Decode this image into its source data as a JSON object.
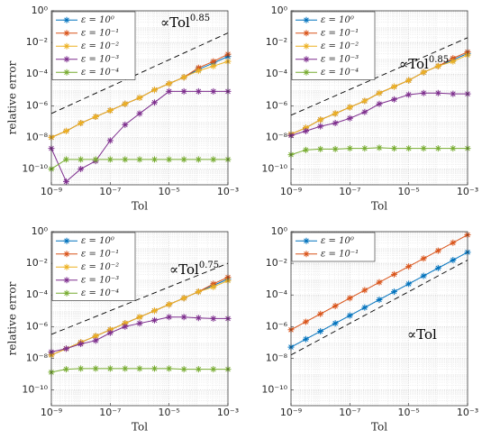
{
  "chart_data": [
    {
      "type": "line",
      "log": true,
      "grid": true,
      "legend": "upper left",
      "xlabel": "Tol",
      "ylabel": "relative error",
      "xlim": [
        1e-09,
        0.001
      ],
      "ylim": [
        1e-11,
        1
      ],
      "xticks": [
        {
          "value": 1e-09,
          "label": "10⁻⁹"
        },
        {
          "value": 1e-07,
          "label": "10⁻⁷"
        },
        {
          "value": 1e-05,
          "label": "10⁻⁵"
        },
        {
          "value": 0.001,
          "label": "10⁻³"
        }
      ],
      "yticks": [
        {
          "value": 1,
          "label": "10⁰"
        },
        {
          "value": 0.01,
          "label": "10⁻²"
        },
        {
          "value": 0.0001,
          "label": "10⁻⁴"
        },
        {
          "value": 1e-06,
          "label": "10⁻⁶"
        },
        {
          "value": 1e-08,
          "label": "10⁻⁸"
        },
        {
          "value": 1e-10,
          "label": "10⁻¹⁰"
        }
      ],
      "x": [
        1e-09,
        3.2e-09,
        1e-08,
        3.2e-08,
        1e-07,
        3.2e-07,
        1e-06,
        3.2e-06,
        1e-05,
        3.2e-05,
        0.0001,
        0.00032,
        0.001
      ],
      "series": [
        {
          "name": "ε = 10⁰",
          "color": "#0072BD",
          "values": [
            1e-08,
            2.5e-08,
            8e-08,
            2e-07,
            5e-07,
            1.3e-06,
            3.2e-06,
            1e-05,
            2.5e-05,
            6.3e-05,
            0.0002,
            0.0005,
            0.0013
          ]
        },
        {
          "name": "ε = 10⁻¹",
          "color": "#D95319",
          "values": [
            1e-08,
            2.5e-08,
            8e-08,
            2e-07,
            5e-07,
            1.3e-06,
            3.2e-06,
            1e-05,
            2.5e-05,
            6.3e-05,
            0.00025,
            0.00063,
            0.0018
          ]
        },
        {
          "name": "ε = 10⁻²",
          "color": "#EDB120",
          "values": [
            1e-08,
            2.5e-08,
            8e-08,
            2e-07,
            5e-07,
            1.3e-06,
            3.2e-06,
            1e-05,
            2.5e-05,
            6.3e-05,
            0.00016,
            0.00032,
            0.00063
          ]
        },
        {
          "name": "ε = 10⁻³",
          "color": "#7E2F8E",
          "values": [
            2e-09,
            1.6e-11,
            1e-10,
            3.2e-10,
            6.3e-09,
            6.3e-08,
            3.2e-07,
            1.6e-06,
            8e-06,
            8e-06,
            8e-06,
            8e-06,
            8e-06
          ]
        },
        {
          "name": "ε = 10⁻⁴",
          "color": "#77AC30",
          "values": [
            1e-10,
            4e-10,
            4e-10,
            4e-10,
            4e-10,
            4e-10,
            4e-10,
            4e-10,
            4e-10,
            4e-10,
            4e-10,
            4e-10,
            4e-10
          ]
        }
      ],
      "reference": {
        "x": [
          1e-09,
          0.001
        ],
        "values": [
          3.2e-07,
          0.04
        ],
        "color": "#000000",
        "style": "dashed"
      },
      "annotation": {
        "text": "∝Tol",
        "exponent": "0.85"
      }
    },
    {
      "type": "line",
      "log": true,
      "grid": true,
      "legend": "upper left",
      "xlabel": "Tol",
      "xlim": [
        1e-09,
        0.001
      ],
      "ylim": [
        1e-11,
        1
      ],
      "xticks": [
        {
          "value": 1e-09,
          "label": "10⁻⁹"
        },
        {
          "value": 1e-07,
          "label": "10⁻⁷"
        },
        {
          "value": 1e-05,
          "label": "10⁻⁵"
        },
        {
          "value": 0.001,
          "label": "10⁻³"
        }
      ],
      "yticks": [
        {
          "value": 1,
          "label": "10⁰"
        },
        {
          "value": 0.01,
          "label": "10⁻²"
        },
        {
          "value": 0.0001,
          "label": "10⁻⁴"
        },
        {
          "value": 1e-06,
          "label": "10⁻⁶"
        },
        {
          "value": 1e-08,
          "label": "10⁻⁸"
        },
        {
          "value": 1e-10,
          "label": "10⁻¹⁰"
        }
      ],
      "x": [
        1e-09,
        3.2e-09,
        1e-08,
        3.2e-08,
        1e-07,
        3.2e-07,
        1e-06,
        3.2e-06,
        1e-05,
        3.2e-05,
        0.0001,
        0.00032,
        0.001
      ],
      "series": [
        {
          "name": "ε = 10⁰",
          "color": "#0072BD",
          "values": [
            1.6e-08,
            4e-08,
            1.3e-07,
            3.2e-07,
            8e-07,
            2e-06,
            6.3e-06,
            1.6e-05,
            4e-05,
            0.00013,
            0.00032,
            0.0008,
            0.002
          ]
        },
        {
          "name": "ε = 10⁻¹",
          "color": "#D95319",
          "values": [
            1.6e-08,
            4e-08,
            1.3e-07,
            3.2e-07,
            8e-07,
            2e-06,
            6.3e-06,
            1.6e-05,
            4e-05,
            0.00013,
            0.00032,
            0.001,
            0.0025
          ]
        },
        {
          "name": "ε = 10⁻²",
          "color": "#EDB120",
          "values": [
            1.6e-08,
            4e-08,
            1.3e-07,
            3.2e-07,
            8e-07,
            2e-06,
            6.3e-06,
            1.6e-05,
            4e-05,
            0.00013,
            0.00032,
            0.00063,
            0.0016
          ]
        },
        {
          "name": "ε = 10⁻³",
          "color": "#7E2F8E",
          "values": [
            1.3e-08,
            2.5e-08,
            5e-08,
            8e-08,
            1.6e-07,
            4e-07,
            1.3e-06,
            2.5e-06,
            5e-06,
            6.3e-06,
            6.3e-06,
            5.6e-06,
            5.6e-06
          ]
        },
        {
          "name": "ε = 10⁻⁴",
          "color": "#77AC30",
          "values": [
            8e-10,
            1.6e-09,
            1.8e-09,
            1.8e-09,
            2e-09,
            2e-09,
            2.2e-09,
            2e-09,
            2e-09,
            2e-09,
            2e-09,
            2e-09,
            2e-09
          ]
        }
      ],
      "reference": {
        "x": [
          1e-09,
          0.001
        ],
        "values": [
          2.5e-07,
          0.02
        ],
        "color": "#000000",
        "style": "dashed"
      },
      "annotation": {
        "text": "∝Tol",
        "exponent": "0.85"
      }
    },
    {
      "type": "line",
      "log": true,
      "grid": true,
      "legend": "upper left",
      "xlabel": "Tol",
      "ylabel": "relative error",
      "xlim": [
        1e-09,
        0.001
      ],
      "ylim": [
        1e-11,
        1
      ],
      "xticks": [
        {
          "value": 1e-09,
          "label": "10⁻⁹"
        },
        {
          "value": 1e-07,
          "label": "10⁻⁷"
        },
        {
          "value": 1e-05,
          "label": "10⁻⁵"
        },
        {
          "value": 0.001,
          "label": "10⁻³"
        }
      ],
      "yticks": [
        {
          "value": 1,
          "label": "10⁰"
        },
        {
          "value": 0.01,
          "label": "10⁻²"
        },
        {
          "value": 0.0001,
          "label": "10⁻⁴"
        },
        {
          "value": 1e-06,
          "label": "10⁻⁶"
        },
        {
          "value": 1e-08,
          "label": "10⁻⁸"
        },
        {
          "value": 1e-10,
          "label": "10⁻¹⁰"
        }
      ],
      "x": [
        1e-09,
        3.2e-09,
        1e-08,
        3.2e-08,
        1e-07,
        3.2e-07,
        1e-06,
        3.2e-06,
        1e-05,
        3.2e-05,
        0.0001,
        0.00032,
        0.001
      ],
      "series": [
        {
          "name": "ε = 10⁰",
          "color": "#0072BD",
          "values": [
            1.6e-08,
            4e-08,
            1e-07,
            2.5e-07,
            6.3e-07,
            1.6e-06,
            4e-06,
            1e-05,
            2.5e-05,
            6.3e-05,
            0.00016,
            0.0004,
            0.001
          ]
        },
        {
          "name": "ε = 10⁻¹",
          "color": "#D95319",
          "values": [
            1.6e-08,
            4e-08,
            1e-07,
            2.5e-07,
            6.3e-07,
            1.6e-06,
            4e-06,
            1e-05,
            2.5e-05,
            6.3e-05,
            0.00016,
            0.0005,
            0.0013
          ]
        },
        {
          "name": "ε = 10⁻²",
          "color": "#EDB120",
          "values": [
            1.6e-08,
            4e-08,
            1e-07,
            2.5e-07,
            6.3e-07,
            1.6e-06,
            4e-06,
            1e-05,
            2.5e-05,
            6.3e-05,
            0.00016,
            0.00032,
            0.0008
          ]
        },
        {
          "name": "ε = 10⁻³",
          "color": "#7E2F8E",
          "values": [
            2.5e-08,
            4e-08,
            8e-08,
            1.3e-07,
            4e-07,
            1e-06,
            1.6e-06,
            2.5e-06,
            4e-06,
            4e-06,
            3.5e-06,
            3.2e-06,
            3.2e-06
          ]
        },
        {
          "name": "ε = 10⁻⁴",
          "color": "#77AC30",
          "values": [
            1.3e-09,
            2e-09,
            2.2e-09,
            2.2e-09,
            2.2e-09,
            2.2e-09,
            2.2e-09,
            2.2e-09,
            2.2e-09,
            2e-09,
            2e-09,
            2e-09,
            2e-09
          ]
        }
      ],
      "reference": {
        "x": [
          1e-09,
          0.001
        ],
        "values": [
          3.2e-07,
          0.01
        ],
        "color": "#000000",
        "style": "dashed"
      },
      "annotation": {
        "text": "∝Tol",
        "exponent": "0.75"
      }
    },
    {
      "type": "line",
      "log": true,
      "grid": true,
      "legend": "upper left",
      "xlabel": "Tol",
      "xlim": [
        1e-09,
        0.001
      ],
      "ylim": [
        1e-11,
        1
      ],
      "xticks": [
        {
          "value": 1e-09,
          "label": "10⁻⁹"
        },
        {
          "value": 1e-07,
          "label": "10⁻⁷"
        },
        {
          "value": 1e-05,
          "label": "10⁻⁵"
        },
        {
          "value": 0.001,
          "label": "10⁻³"
        }
      ],
      "yticks": [
        {
          "value": 1,
          "label": "10⁰"
        },
        {
          "value": 0.01,
          "label": "10⁻²"
        },
        {
          "value": 0.0001,
          "label": "10⁻⁴"
        },
        {
          "value": 1e-06,
          "label": "10⁻⁶"
        },
        {
          "value": 1e-08,
          "label": "10⁻⁸"
        },
        {
          "value": 1e-10,
          "label": "10⁻¹⁰"
        }
      ],
      "x": [
        1e-09,
        3.2e-09,
        1e-08,
        3.2e-08,
        1e-07,
        3.2e-07,
        1e-06,
        3.2e-06,
        1e-05,
        3.2e-05,
        0.0001,
        0.00032,
        0.001
      ],
      "series": [
        {
          "name": "ε = 10⁰",
          "color": "#0072BD",
          "values": [
            5e-08,
            1.6e-07,
            5e-07,
            1.6e-06,
            5e-06,
            1.6e-05,
            5e-05,
            0.00016,
            0.0005,
            0.0016,
            0.005,
            0.016,
            0.05
          ]
        },
        {
          "name": "ε = 10⁻¹",
          "color": "#D95319",
          "values": [
            6.3e-07,
            2e-06,
            6.3e-06,
            2e-05,
            6.3e-05,
            0.0002,
            0.00063,
            0.002,
            0.0063,
            0.02,
            0.063,
            0.2,
            0.63
          ]
        }
      ],
      "reference": {
        "x": [
          1e-09,
          0.001
        ],
        "values": [
          1.6e-08,
          0.016
        ],
        "color": "#000000",
        "style": "dashed"
      },
      "annotation": {
        "text": "∝Tol"
      }
    }
  ]
}
